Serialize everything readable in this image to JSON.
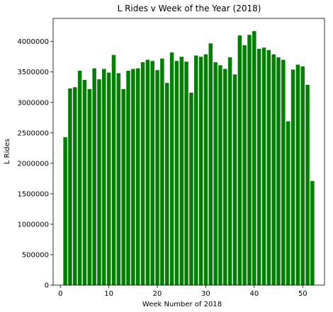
{
  "chart_data": {
    "type": "bar",
    "title": "L Rides v Week of the Year (2018)",
    "xlabel": "Week Number of 2018",
    "ylabel": "L Rides",
    "bar_color": "#008000",
    "xlim": [
      -1.5,
      54.5
    ],
    "ylim": [
      0,
      4380000
    ],
    "xticks": [
      0,
      10,
      20,
      30,
      40,
      50
    ],
    "yticks": [
      0,
      500000,
      1000000,
      1500000,
      2000000,
      2500000,
      3000000,
      3500000,
      4000000
    ],
    "grid": false,
    "x": [
      1,
      2,
      3,
      4,
      5,
      6,
      7,
      8,
      9,
      10,
      11,
      12,
      13,
      14,
      15,
      16,
      17,
      18,
      19,
      20,
      21,
      22,
      23,
      24,
      25,
      26,
      27,
      28,
      29,
      30,
      31,
      32,
      33,
      34,
      35,
      36,
      37,
      38,
      39,
      40,
      41,
      42,
      43,
      44,
      45,
      46,
      47,
      48,
      49,
      50,
      51,
      52
    ],
    "values": [
      2430000,
      3230000,
      3250000,
      3520000,
      3370000,
      3220000,
      3560000,
      3380000,
      3550000,
      3490000,
      3780000,
      3480000,
      3220000,
      3520000,
      3550000,
      3560000,
      3660000,
      3700000,
      3680000,
      3530000,
      3720000,
      3320000,
      3820000,
      3680000,
      3750000,
      3670000,
      3160000,
      3770000,
      3750000,
      3790000,
      3970000,
      3660000,
      3610000,
      3550000,
      3740000,
      3460000,
      4100000,
      3940000,
      4110000,
      4170000,
      3880000,
      3900000,
      3860000,
      3790000,
      3740000,
      3700000,
      2690000,
      3540000,
      3620000,
      3590000,
      3290000,
      1710000
    ]
  }
}
